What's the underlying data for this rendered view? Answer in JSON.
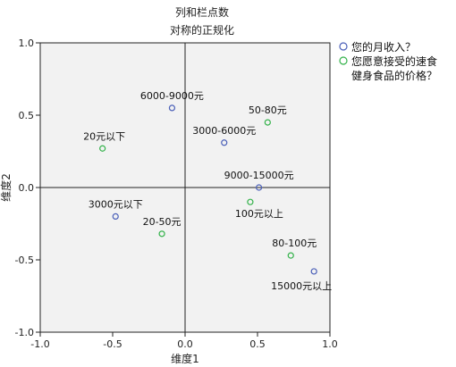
{
  "chart_data": {
    "type": "scatter",
    "title": "列和栏点数",
    "subtitle": "对称的正规化",
    "xlabel": "维度1",
    "ylabel": "维度2",
    "xlim": [
      -1.0,
      1.0
    ],
    "ylim": [
      -1.0,
      1.0
    ],
    "xticks": [
      -1.0,
      -0.5,
      0.0,
      0.5,
      1.0
    ],
    "yticks": [
      -1.0,
      -0.5,
      0.0,
      0.5,
      1.0
    ],
    "xtick_labels": [
      "-1.0",
      "-0.5",
      "0.0",
      "0.5",
      "1.0"
    ],
    "ytick_labels": [
      "-1.0",
      "-0.5",
      "0.0",
      "0.5",
      "1.0"
    ],
    "grid": false,
    "reference_lines": {
      "x": 0,
      "y": 0
    },
    "legend_position": "right",
    "series": [
      {
        "name": "您的月收入？",
        "color": "#4a5fb8",
        "points": [
          {
            "label": "6000-9000元",
            "x": -0.09,
            "y": 0.55
          },
          {
            "label": "3000-6000元",
            "x": 0.27,
            "y": 0.31
          },
          {
            "label": "9000-15000元",
            "x": 0.51,
            "y": 0.0
          },
          {
            "label": "3000元以下",
            "x": -0.48,
            "y": -0.2
          },
          {
            "label": "15000元以上",
            "x": 0.89,
            "y": -0.58
          }
        ]
      },
      {
        "name": "您愿意接受的速食健身食品的价格？",
        "color": "#33b24a",
        "points": [
          {
            "label": "50-80元",
            "x": 0.57,
            "y": 0.45
          },
          {
            "label": "20元以下",
            "x": -0.57,
            "y": 0.27
          },
          {
            "label": "100元以上",
            "x": 0.45,
            "y": -0.1
          },
          {
            "label": "20-50元",
            "x": -0.16,
            "y": -0.32
          },
          {
            "label": "80-100元",
            "x": 0.73,
            "y": -0.47
          }
        ]
      }
    ],
    "legend_lines": [
      [
        "您的月收入？"
      ],
      [
        "您愿意接受的速食",
        "健身食品的价格？"
      ]
    ]
  }
}
